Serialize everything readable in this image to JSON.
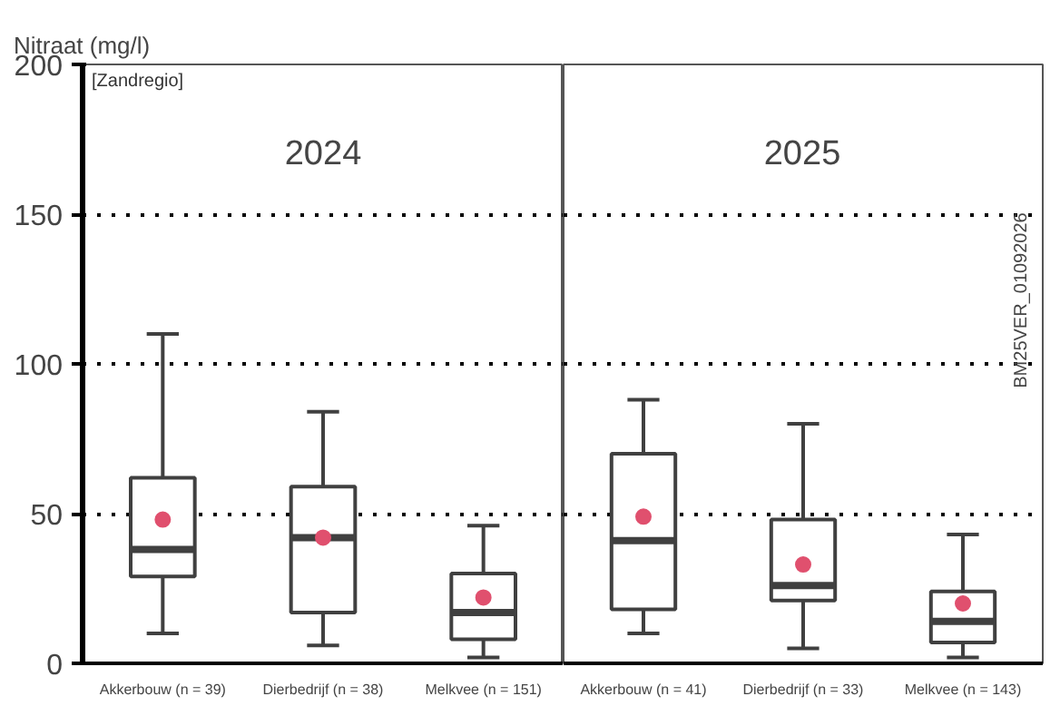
{
  "chart_data": [
    {
      "type": "box",
      "title": "2024",
      "ylabel": "Nitraat (mg/l)",
      "categories": [
        "Akkerbouw (n = 39)",
        "Dierbedrijf (n = 38)",
        "Melkvee (n = 151)"
      ],
      "ylim": [
        0,
        200
      ],
      "yticks": [
        0,
        50,
        100,
        150,
        200
      ],
      "grid": "y",
      "color": "#404040",
      "boxes": [
        {
          "low": 10,
          "q1": 29,
          "median": 38,
          "q3": 62,
          "high": 110,
          "mean": 48
        },
        {
          "low": 6,
          "q1": 17,
          "median": 42,
          "q3": 59,
          "high": 84,
          "mean": 42
        },
        {
          "low": 2,
          "q1": 8,
          "median": 17,
          "q3": 30,
          "high": 46,
          "mean": 22
        }
      ],
      "annotations": [
        "[Zandregio]"
      ]
    },
    {
      "type": "box",
      "title": "2025",
      "categories": [
        "Akkerbouw (n = 41)",
        "Dierbedrijf (n = 33)",
        "Melkvee (n = 143)"
      ],
      "ylim": [
        0,
        200
      ],
      "yticks": [
        0,
        50,
        100,
        150,
        200
      ],
      "grid": "y",
      "tick_labels": "x",
      "color": "#404040",
      "boxes": [
        {
          "low": 10,
          "q1": 18,
          "median": 41,
          "q3": 70,
          "high": 88,
          "mean": 49
        },
        {
          "low": 5,
          "q1": 21,
          "median": 26,
          "q3": 48,
          "high": 80,
          "mean": 33
        },
        {
          "low": 2,
          "q1": 7,
          "median": 14,
          "q3": 24,
          "high": 43,
          "mean": 20
        }
      ],
      "annotations": [
        "BM25VER_01092026"
      ]
    }
  ]
}
